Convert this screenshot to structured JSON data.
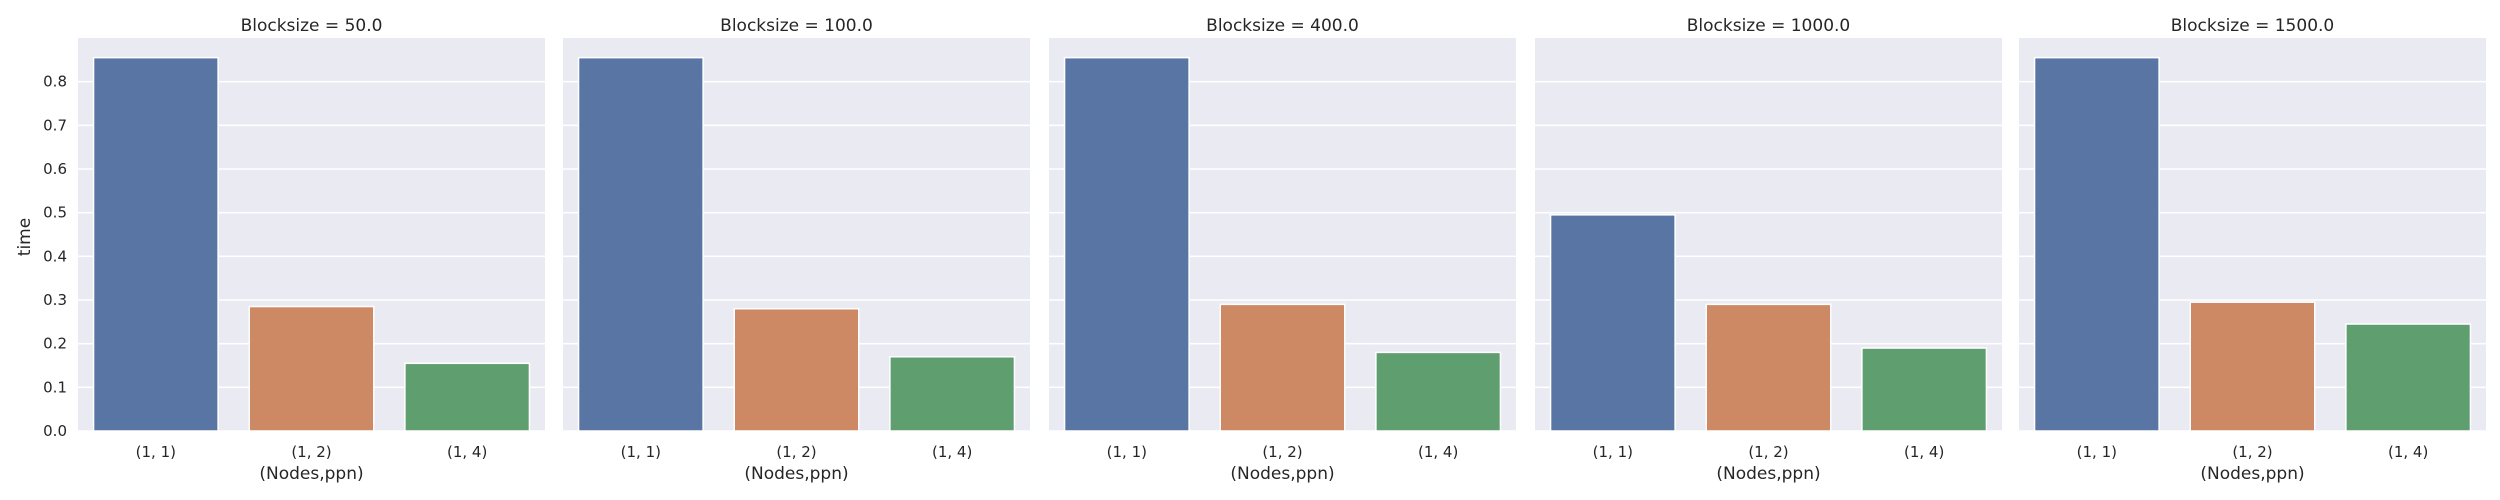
{
  "chart_data": {
    "type": "bar",
    "ylabel": "time",
    "xlabel": "(Nodes,ppn)",
    "ylim": [
      0,
      0.9
    ],
    "yticks": [
      "0.0",
      "0.1",
      "0.2",
      "0.3",
      "0.4",
      "0.5",
      "0.6",
      "0.7",
      "0.8"
    ],
    "categories": [
      "(1, 1)",
      "(1, 2)",
      "(1, 4)"
    ],
    "colors": [
      "#5975a4",
      "#cc8963",
      "#5f9e6e"
    ],
    "grid": true,
    "facets": [
      {
        "title": "Blocksize = 50.0",
        "values": [
          0.855,
          0.285,
          0.155
        ]
      },
      {
        "title": "Blocksize = 100.0",
        "values": [
          0.855,
          0.28,
          0.17
        ]
      },
      {
        "title": "Blocksize = 400.0",
        "values": [
          0.855,
          0.29,
          0.18
        ]
      },
      {
        "title": "Blocksize = 1000.0",
        "values": [
          0.495,
          0.29,
          0.19
        ]
      },
      {
        "title": "Blocksize = 1500.0",
        "values": [
          0.855,
          0.295,
          0.245
        ]
      }
    ]
  }
}
